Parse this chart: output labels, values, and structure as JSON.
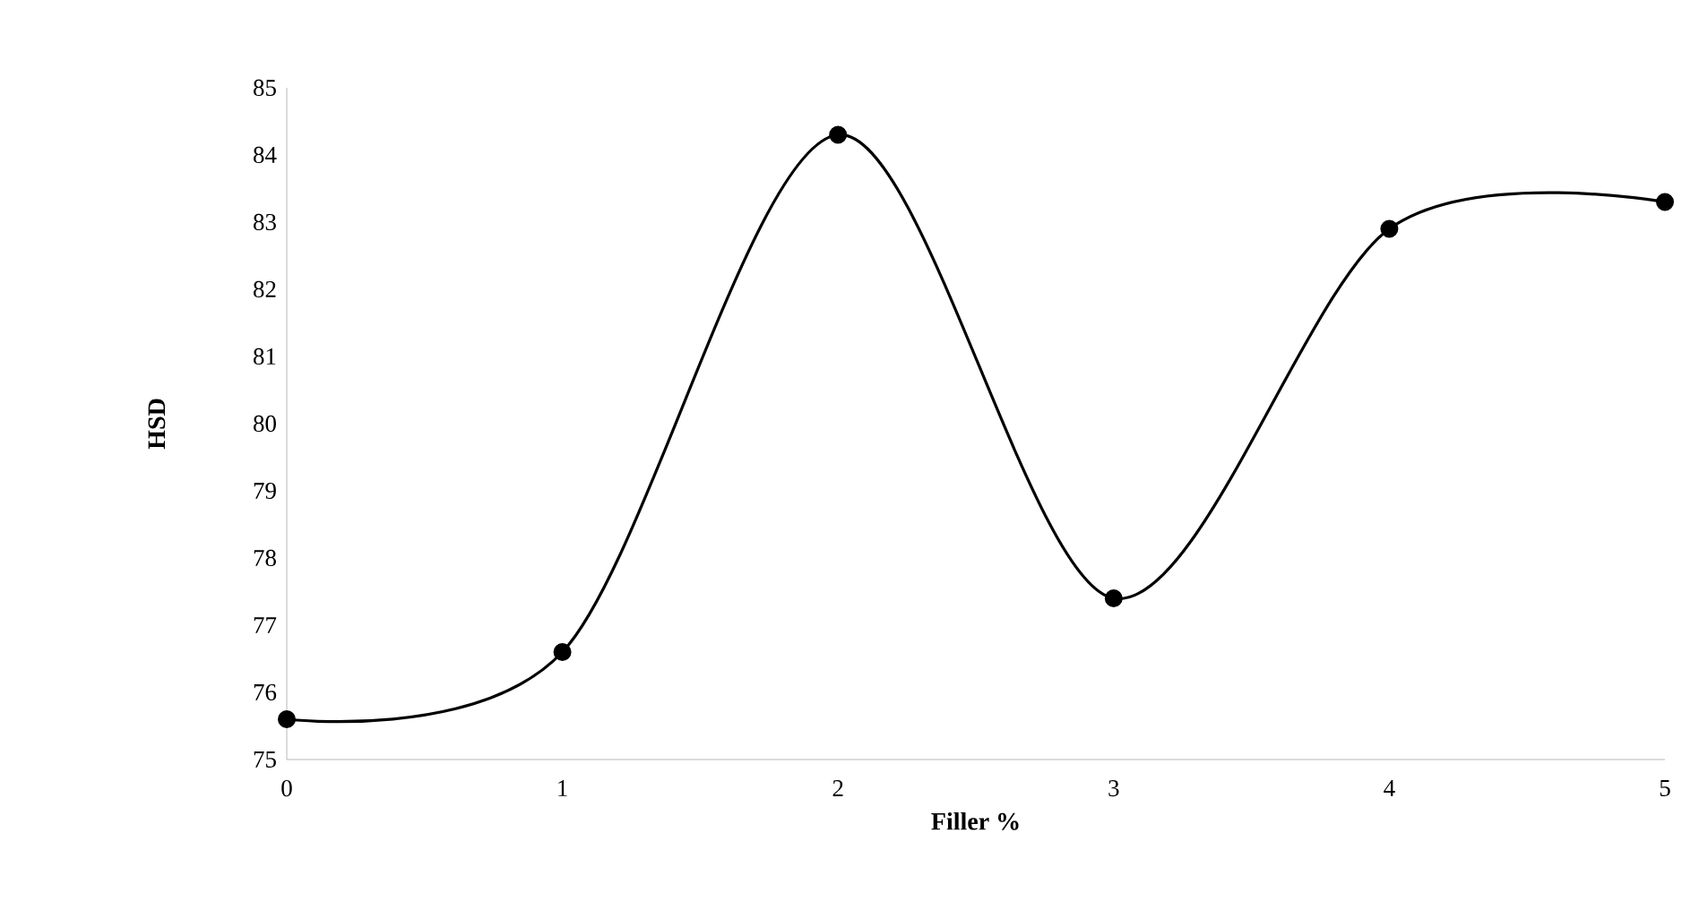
{
  "chart_data": {
    "type": "line",
    "xlabel": "Filler %",
    "ylabel": "HSD",
    "x": [
      0,
      1,
      2,
      3,
      4,
      5
    ],
    "series": [
      {
        "color": "#000000",
        "values": [
          75.6,
          76.6,
          84.3,
          77.4,
          82.9,
          83.3
        ]
      }
    ],
    "xlim": [
      0,
      5
    ],
    "xticks": [
      0,
      1,
      2,
      3,
      4,
      5
    ],
    "ylim": [
      75,
      85
    ],
    "yticks": [
      75,
      76,
      77,
      78,
      79,
      80,
      81,
      82,
      83,
      84,
      85
    ],
    "grid": false,
    "marker": "circle",
    "line_style": "solid"
  }
}
